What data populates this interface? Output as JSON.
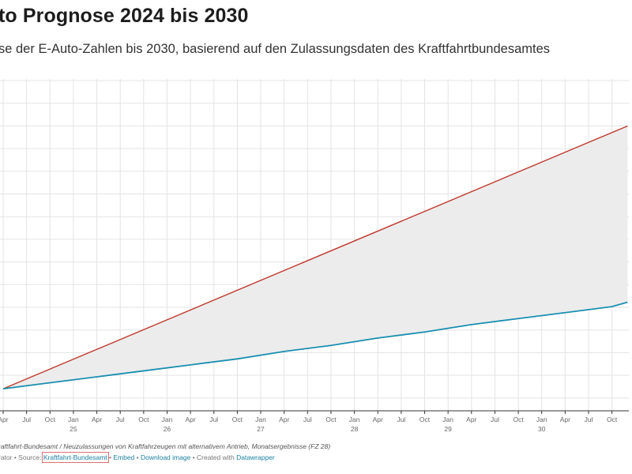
{
  "title": "to Prognose 2024 bis 2030",
  "subtitle": "se der E-Auto-Zahlen bis 2030, basierend auf den Zulassungsdaten des Kraftfahrtbundesamtes",
  "notes": "raftfahrt-Bundesamt / Neuzulassungen von Kraftfahrzeugen mit alternativem Antrieb, Monatsergebnisse (FZ 28)",
  "footer": {
    "credit_prefix": "rator • Source: ",
    "source_link": "Kraftfahrt-Bundesamt",
    "sep1": " • ",
    "embed": "Embed",
    "sep2": " • ",
    "download": "Download image",
    "sep3": " • Created with ",
    "datawrapper": "Datawrapper"
  },
  "colors": {
    "target_line": "#c0392b",
    "forecast_line": "#1a8fb0",
    "gap_fill": "#ececec",
    "grid": "#e3e3e3"
  },
  "chart_data": {
    "type": "line",
    "title": "to Prognose 2024 bis 2030",
    "x_tick_labels": [
      "Apr",
      "Jul",
      "Oct",
      "Jan",
      "Apr",
      "Jul",
      "Oct",
      "Jan",
      "Apr",
      "Jul",
      "Oct",
      "Jan",
      "Apr",
      "Jul",
      "Oct",
      "Jan",
      "Apr",
      "Jul",
      "Oct",
      "Jan",
      "Apr",
      "Jul",
      "Oct",
      "Jan",
      "Apr",
      "Jul",
      "Oct"
    ],
    "year_labels": [
      "25",
      "26",
      "27",
      "28",
      "29",
      "30"
    ],
    "grid": true,
    "series": [
      {
        "color": "#c0392b",
        "x": [
          "2024-04",
          "2030-12"
        ],
        "y": [
          0.05,
          0.93
        ]
      },
      {
        "color": "#1a8fb0",
        "x": [
          "2024-04",
          "2024-10",
          "2025-04",
          "2025-10",
          "2026-04",
          "2026-10",
          "2027-04",
          "2027-10",
          "2028-04",
          "2028-10",
          "2029-04",
          "2029-10",
          "2030-04",
          "2030-10",
          "2030-12"
        ],
        "y": [
          0.05,
          0.07,
          0.09,
          0.11,
          0.13,
          0.15,
          0.175,
          0.195,
          0.22,
          0.24,
          0.265,
          0.285,
          0.305,
          0.325,
          0.34
        ]
      }
    ]
  }
}
